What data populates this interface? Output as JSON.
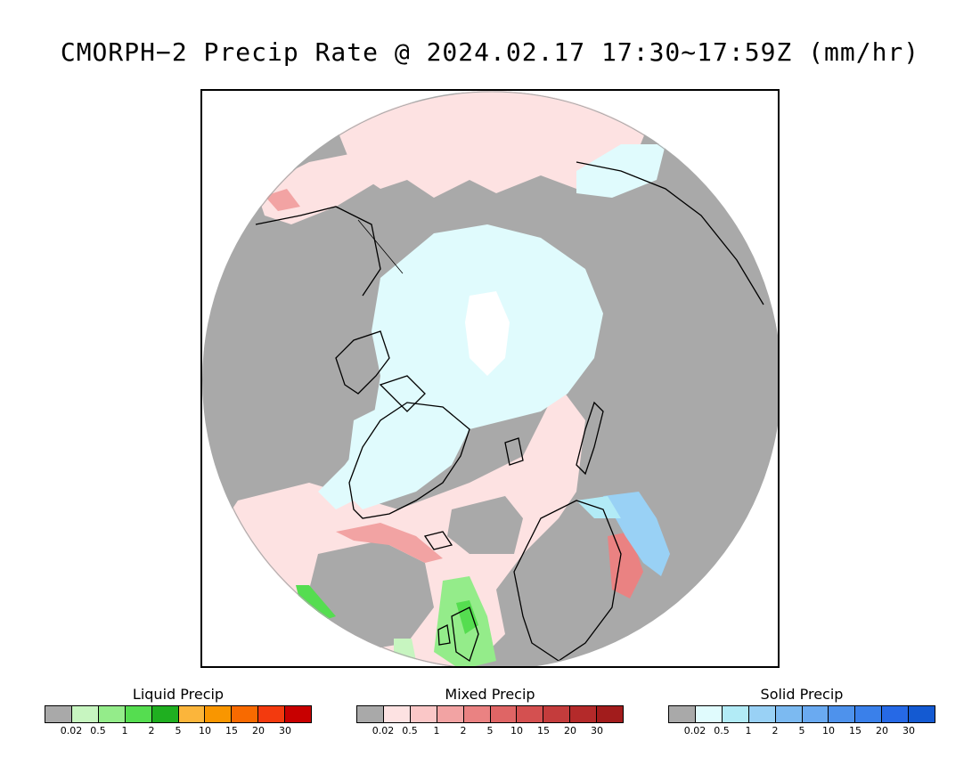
{
  "title": "CMORPH−2 Precip Rate @ 2024.02.17 17:30~17:59Z (mm/hr)",
  "map": {
    "projection": "polar stereographic, north pole",
    "colors": {
      "land_nodata": "#a9a9a9",
      "coast": "#000000"
    }
  },
  "legends": [
    {
      "title": "Liquid Precip",
      "colors": [
        "#a9a9a9",
        "#c7f5c0",
        "#94ec8a",
        "#55dd50",
        "#1faf20",
        "#fbb53b",
        "#f99600",
        "#f86a00",
        "#f33a0e",
        "#c80000"
      ],
      "ticks": [
        "0.02",
        "0.5",
        "1",
        "2",
        "5",
        "10",
        "15",
        "20",
        "30"
      ]
    },
    {
      "title": "Mixed Precip",
      "colors": [
        "#a9a9a9",
        "#fde2e2",
        "#fac7c7",
        "#f2a3a3",
        "#ea8282",
        "#df6565",
        "#d45050",
        "#c43c3c",
        "#b42a2a",
        "#a21c1c"
      ],
      "ticks": [
        "0.02",
        "0.5",
        "1",
        "2",
        "5",
        "10",
        "15",
        "20",
        "30"
      ]
    },
    {
      "title": "Solid Precip",
      "colors": [
        "#a9a9a9",
        "#e0fbfd",
        "#b2ebf6",
        "#99d1f5",
        "#7cbaf1",
        "#6aaaf1",
        "#4e92ec",
        "#3a80ea",
        "#2669e6",
        "#145ad2"
      ],
      "ticks": [
        "0.02",
        "0.5",
        "1",
        "2",
        "5",
        "10",
        "15",
        "20",
        "30"
      ]
    }
  ]
}
